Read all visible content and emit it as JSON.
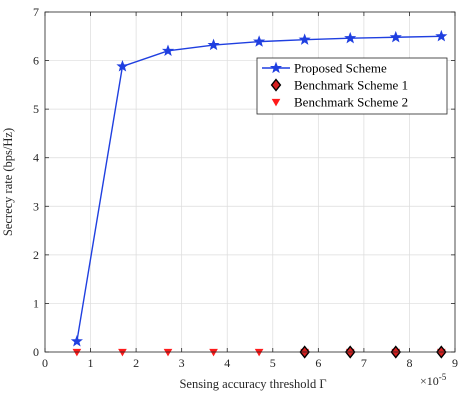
{
  "chart_data": {
    "type": "line",
    "title": "",
    "xlabel": "Sensing accuracy threshold Γ",
    "ylabel": "Secrecy rate (bps/Hz)",
    "x_exponent_label": "×10",
    "x_exponent_power": "-5",
    "x_scale_factor": 1e-05,
    "xlim": [
      0,
      9e-05
    ],
    "ylim": [
      0,
      7
    ],
    "x_ticks": [
      0,
      1e-05,
      2e-05,
      3e-05,
      4e-05,
      5e-05,
      6e-05,
      7e-05,
      8e-05,
      9e-05
    ],
    "x_tick_labels": [
      "0",
      "1",
      "2",
      "3",
      "4",
      "5",
      "6",
      "7",
      "8",
      "9"
    ],
    "y_ticks": [
      0,
      1,
      2,
      3,
      4,
      5,
      6,
      7
    ],
    "y_tick_labels": [
      "0",
      "1",
      "2",
      "3",
      "4",
      "5",
      "6",
      "7"
    ],
    "grid": true,
    "legend_position": "top-right",
    "series": [
      {
        "name": "Proposed Scheme",
        "color": "#1f3fe0",
        "marker": "star",
        "line": true,
        "x": [
          7e-06,
          1.7e-05,
          2.7e-05,
          3.7e-05,
          4.7e-05,
          5.7e-05,
          6.7e-05,
          7.7e-05,
          8.7e-05
        ],
        "y": [
          0.22,
          5.88,
          6.2,
          6.32,
          6.39,
          6.43,
          6.46,
          6.48,
          6.5
        ]
      },
      {
        "name": "Benchmark Scheme 1",
        "color": "#000000",
        "fill": "#d62020",
        "marker": "diamond",
        "line": false,
        "x": [
          5.7e-05,
          6.7e-05,
          7.7e-05,
          8.7e-05
        ],
        "y": [
          0,
          0,
          0,
          0
        ]
      },
      {
        "name": "Benchmark Scheme 2",
        "color": "#ff1a1a",
        "marker": "triangle-down",
        "line": false,
        "x": [
          7e-06,
          1.7e-05,
          2.7e-05,
          3.7e-05,
          4.7e-05,
          5.7e-05,
          6.7e-05,
          7.7e-05,
          8.7e-05
        ],
        "y": [
          0,
          0,
          0,
          0,
          0,
          0,
          0,
          0,
          0
        ]
      }
    ]
  }
}
